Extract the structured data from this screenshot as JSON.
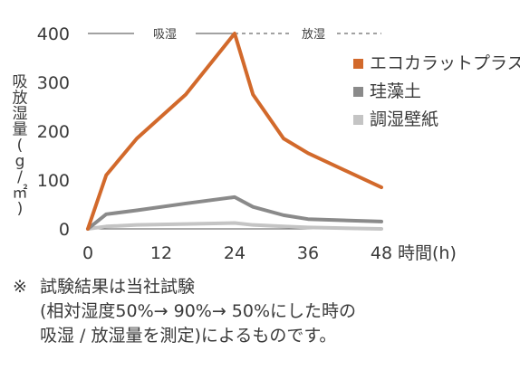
{
  "chart_data": {
    "type": "line",
    "x": [
      0,
      3,
      8,
      16,
      24,
      27,
      32,
      36,
      48
    ],
    "series": [
      {
        "name": "エコカラットプラス",
        "color": "#d2692b",
        "values": [
          0,
          110,
          185,
          275,
          400,
          275,
          185,
          155,
          85
        ]
      },
      {
        "name": "珪藻土",
        "color": "#8a8a8a",
        "values": [
          0,
          30,
          38,
          52,
          65,
          45,
          28,
          20,
          15
        ]
      },
      {
        "name": "調湿壁紙",
        "color": "#c4c4c4",
        "values": [
          0,
          5,
          8,
          10,
          12,
          8,
          5,
          3,
          0
        ]
      }
    ],
    "xticks": [
      "0",
      "12",
      "24",
      "36",
      "48"
    ],
    "xtick_values": [
      0,
      12,
      24,
      36,
      48
    ],
    "yticks": [
      "0",
      "100",
      "200",
      "300",
      "400"
    ],
    "ytick_values": [
      0,
      100,
      200,
      300,
      400
    ],
    "xlim": [
      0,
      48
    ],
    "ylim": [
      0,
      400
    ],
    "xlabel": "時間(h)",
    "ylabel": "吸放湿量(g/㎡)",
    "phases": {
      "absorb": "吸湿",
      "release": "放湿",
      "split_x": 24
    },
    "grid": false,
    "legend_position": "top-right"
  },
  "note": {
    "mark": "※",
    "line1": "試験結果は当社試験",
    "line2": "(相対湿度50%→ 90%→ 50%にした時の",
    "line3": "吸湿 / 放湿量を測定)によるものです。"
  }
}
